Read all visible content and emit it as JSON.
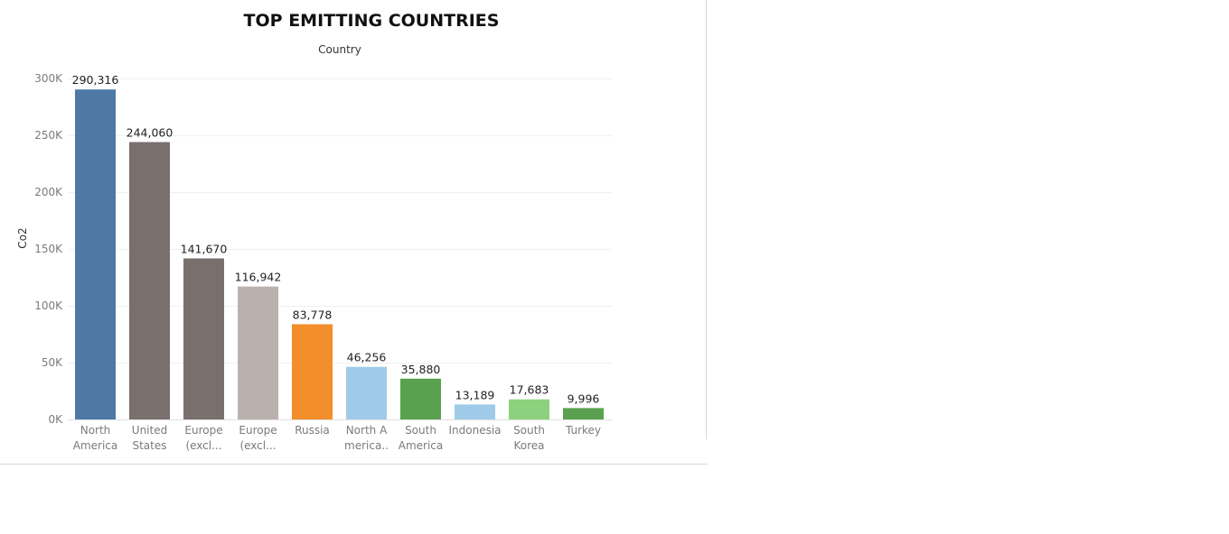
{
  "chart_data": {
    "type": "bar",
    "title": "TOP EMITTING COUNTRIES",
    "column_header": "Country",
    "ylabel": "Co2",
    "xlabel": "",
    "ylim": [
      0,
      310000
    ],
    "y_ticks": [
      0,
      50000,
      100000,
      150000,
      200000,
      250000,
      300000
    ],
    "y_tick_labels": [
      "0K",
      "50K",
      "100K",
      "150K",
      "200K",
      "250K",
      "300K"
    ],
    "grid": true,
    "categories": [
      [
        "North",
        "America"
      ],
      [
        "United",
        "States"
      ],
      [
        "Europe",
        "(excl..."
      ],
      [
        "Europe",
        "(excl..."
      ],
      [
        "Russia"
      ],
      [
        "North A",
        "merica.."
      ],
      [
        "South",
        "America"
      ],
      [
        "Indonesia"
      ],
      [
        "South",
        "Korea"
      ],
      [
        "Turkey"
      ]
    ],
    "values": [
      290316,
      244060,
      141670,
      116942,
      83778,
      46256,
      35880,
      13189,
      17683,
      9996
    ],
    "value_labels": [
      "290,316",
      "244,060",
      "141,670",
      "116,942",
      "83,778",
      "46,256",
      "35,880",
      "13,189",
      "17,683",
      "9,996"
    ],
    "colors": [
      "#4e79a7",
      "#79706e",
      "#79706e",
      "#bab0ac",
      "#f28e2b",
      "#a0cbe8",
      "#59a14f",
      "#a0cbe8",
      "#8cd17d",
      "#59a14f"
    ]
  }
}
